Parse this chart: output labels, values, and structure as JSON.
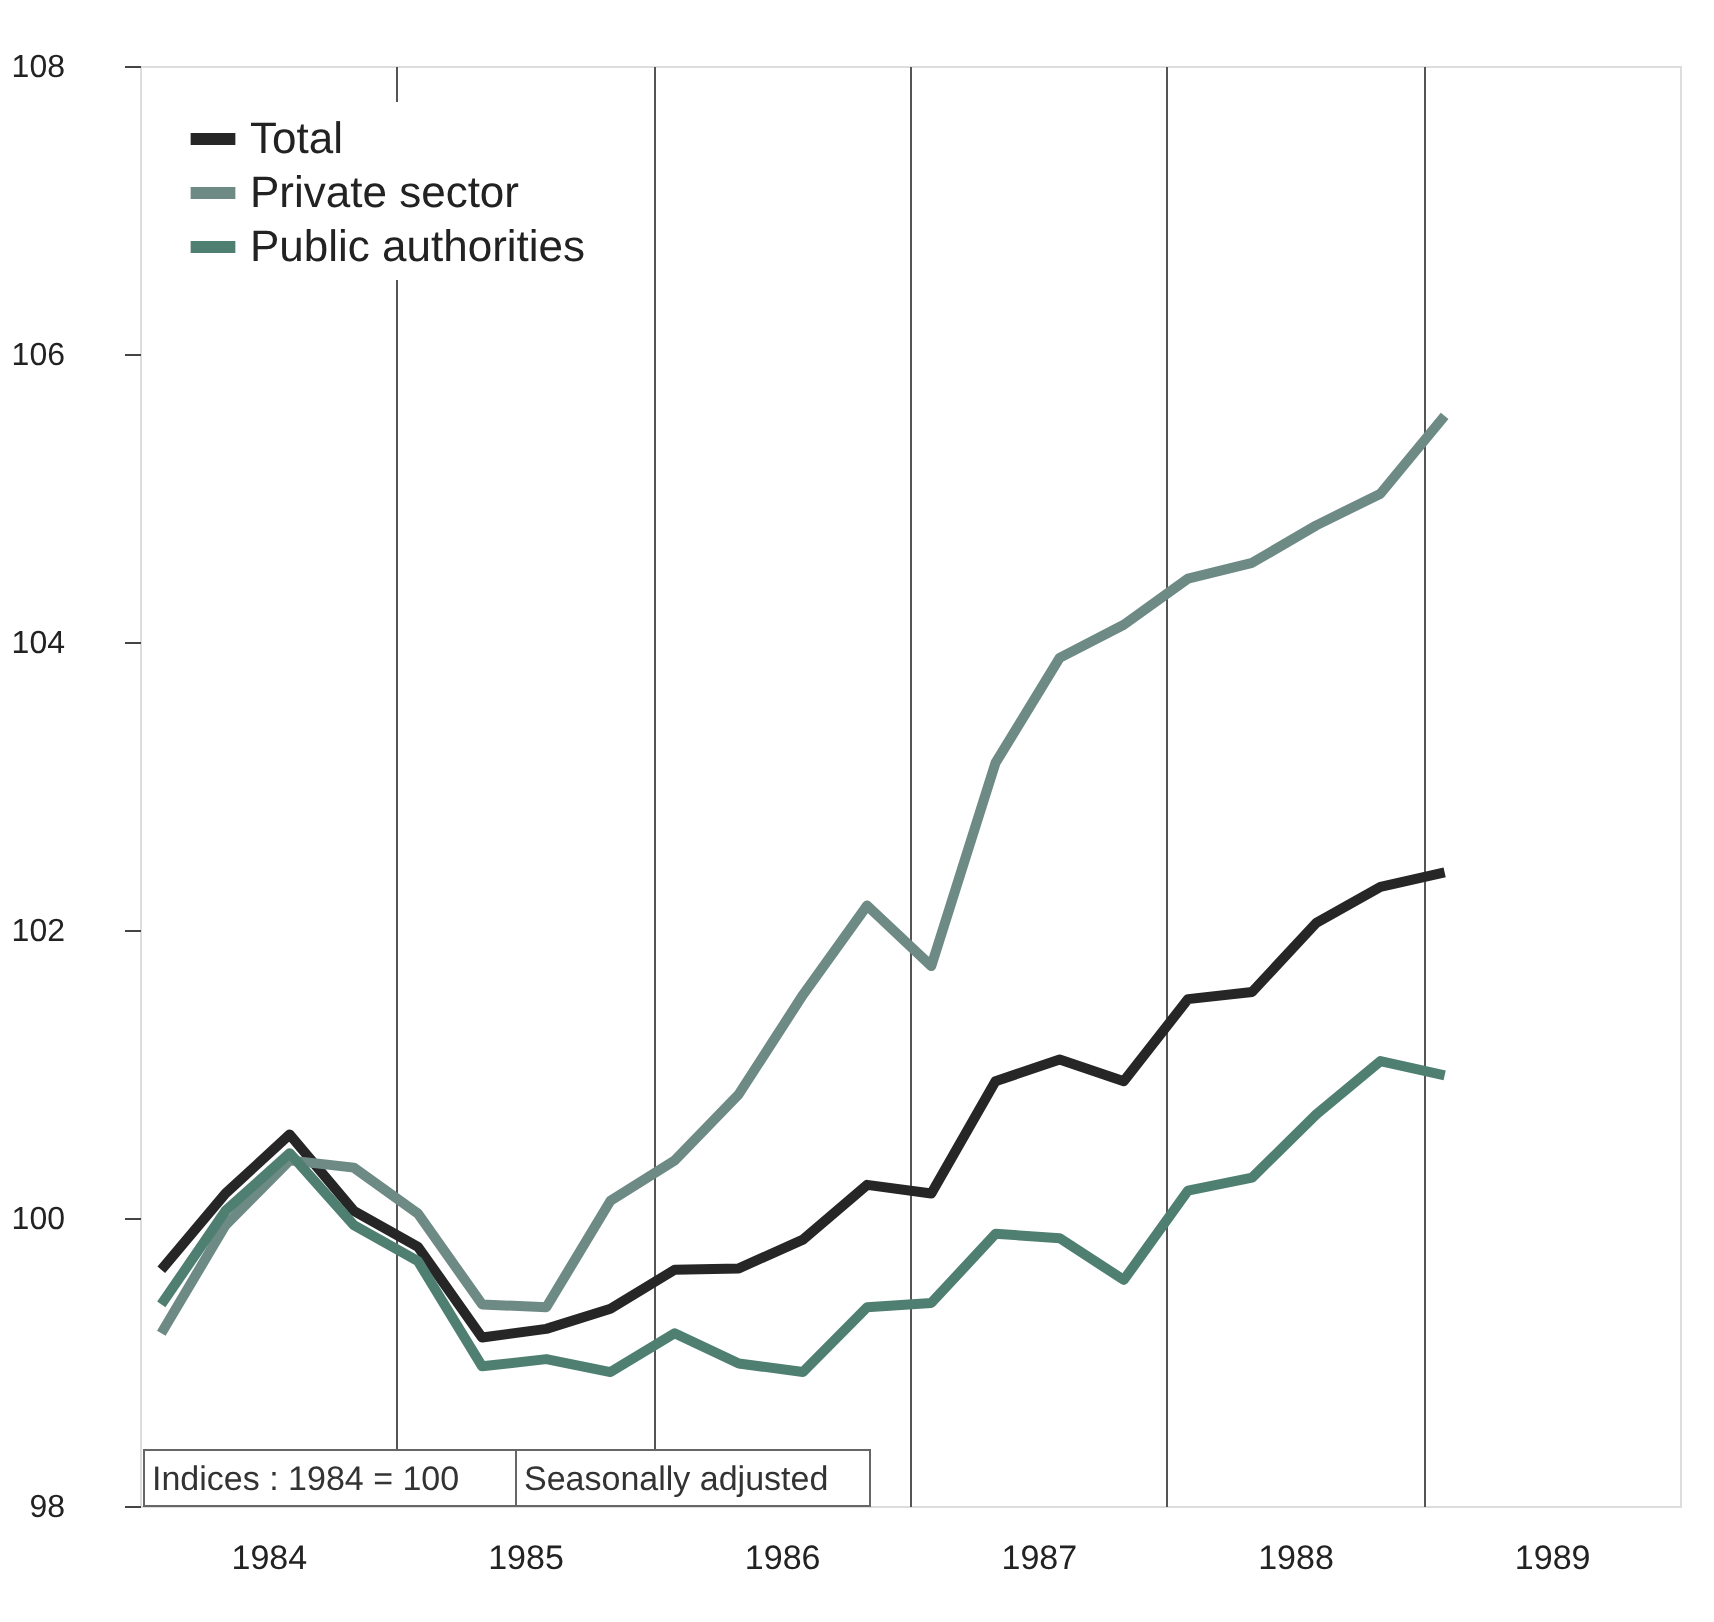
{
  "chart_data": {
    "type": "line",
    "x": [
      1984.083,
      1984.333,
      1984.583,
      1984.833,
      1985.083,
      1985.333,
      1985.583,
      1985.833,
      1986.083,
      1986.333,
      1986.583,
      1986.833,
      1987.083,
      1987.333,
      1987.583,
      1987.833,
      1988.083,
      1988.333,
      1988.583,
      1988.833,
      1989.083
    ],
    "series": [
      {
        "name": "Total",
        "color": "#262626",
        "values": [
          99.64,
          100.17,
          100.58,
          100.05,
          99.8,
          99.17,
          99.23,
          99.37,
          99.64,
          99.65,
          99.85,
          100.23,
          100.17,
          100.95,
          101.1,
          100.95,
          101.52,
          101.57,
          102.05,
          102.3,
          102.4
        ]
      },
      {
        "name": "Private sector",
        "color": "#6e8a84",
        "values": [
          99.2,
          99.95,
          100.4,
          100.35,
          100.03,
          99.4,
          99.38,
          100.12,
          100.4,
          100.86,
          101.55,
          102.17,
          101.75,
          103.16,
          103.89,
          104.12,
          104.44,
          104.55,
          104.81,
          105.03,
          105.57
        ]
      },
      {
        "name": "Public authorities",
        "color": "#4f7f70",
        "values": [
          99.4,
          100.05,
          100.45,
          99.95,
          99.7,
          98.97,
          99.02,
          98.93,
          99.2,
          98.99,
          98.93,
          99.38,
          99.41,
          99.89,
          99.86,
          99.57,
          100.19,
          100.28,
          100.72,
          101.09,
          100.99
        ]
      }
    ],
    "xlim": [
      1984,
      1990
    ],
    "xticks": [
      {
        "value": 1984.5,
        "label": "1984"
      },
      {
        "value": 1985,
        "label": null
      },
      {
        "value": 1985.5,
        "label": "1985"
      },
      {
        "value": 1986,
        "label": null
      },
      {
        "value": 1986.5,
        "label": "1986"
      },
      {
        "value": 1987,
        "label": null
      },
      {
        "value": 1987.5,
        "label": "1987"
      },
      {
        "value": 1988,
        "label": null
      },
      {
        "value": 1988.5,
        "label": "1988"
      },
      {
        "value": 1989,
        "label": null
      },
      {
        "value": 1989.5,
        "label": "1989"
      }
    ],
    "ylim": [
      98,
      108
    ],
    "yticks": [
      98,
      100,
      102,
      104,
      106,
      108
    ],
    "grid": "x",
    "legend": "top left",
    "line_style": "solid",
    "marker": "none",
    "annotations": [
      "Indices : 1984 = 100",
      "Seasonally adjusted"
    ]
  }
}
